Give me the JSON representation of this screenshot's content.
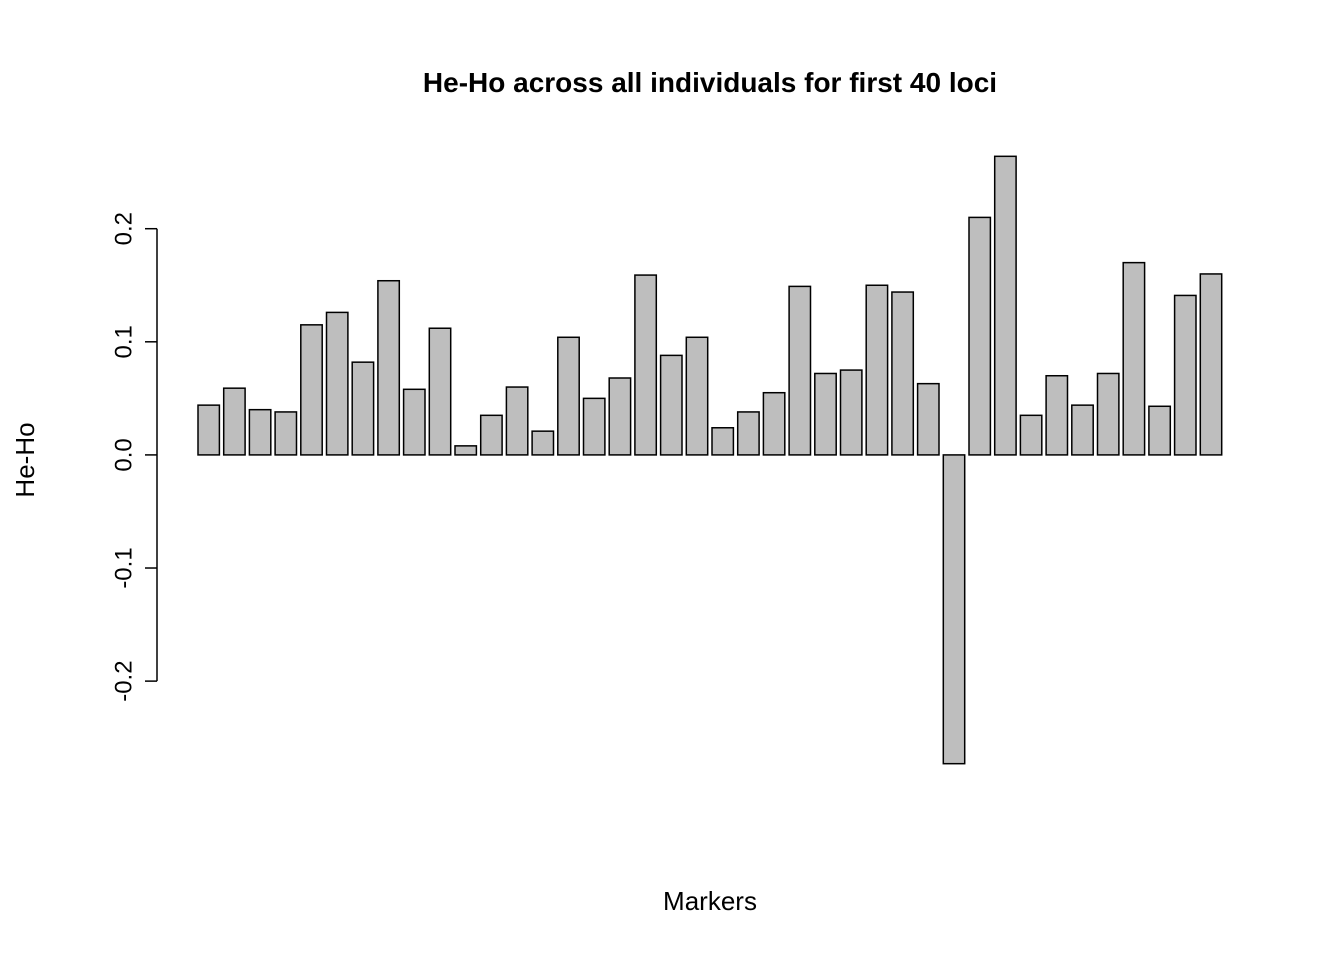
{
  "chart_data": {
    "type": "bar",
    "title": "He-Ho across all individuals for first 40 loci",
    "x_label": "Markers",
    "y_label": "He-Ho",
    "categories": [
      null,
      null,
      null,
      null,
      null,
      null,
      null,
      null,
      null,
      null,
      null,
      null,
      null,
      null,
      null,
      null,
      null,
      null,
      null,
      null,
      null,
      null,
      null,
      null,
      null,
      null,
      null,
      null,
      null,
      null,
      null,
      null,
      null,
      null,
      null,
      null,
      null,
      null,
      null,
      null
    ],
    "values": [
      0.044,
      0.059,
      0.04,
      0.038,
      0.115,
      0.126,
      0.082,
      0.154,
      0.058,
      0.112,
      0.008,
      0.035,
      0.06,
      0.021,
      0.104,
      0.05,
      0.068,
      0.159,
      0.088,
      0.104,
      0.024,
      0.038,
      0.055,
      0.149,
      0.072,
      0.075,
      0.15,
      0.144,
      0.063,
      -0.273,
      0.21,
      0.264,
      0.035,
      0.07,
      0.044,
      0.072,
      0.17,
      0.043,
      0.141,
      0.16
    ],
    "color": "#bebebe",
    "ylim": [
      -0.2945,
      0.2855
    ],
    "yticks": [
      -0.2,
      -0.1,
      {
        "value": 0,
        "label": "0.0"
      },
      0.1,
      0.2
    ]
  }
}
